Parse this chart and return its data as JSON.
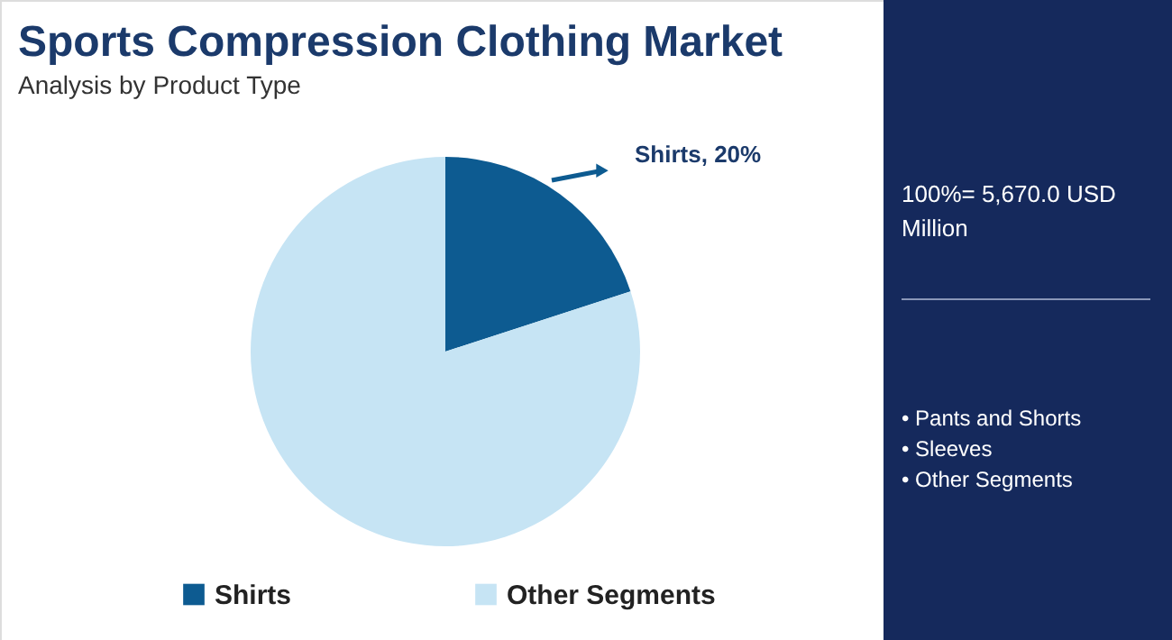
{
  "chart_data": {
    "type": "pie",
    "title": "Sports Compression Clothing Market",
    "subtitle": "Analysis by Product Type",
    "categories": [
      "Shirts",
      "Other Segments"
    ],
    "values": [
      20,
      80
    ],
    "colors": [
      "#0d5b91",
      "#c6e4f4"
    ],
    "value_labels": [
      "Shirts, 20%",
      null
    ],
    "legend": "bottom",
    "annotations": [
      "100%= 5,670.0 USD Million",
      "• Pants and Shorts",
      "• Sleeves",
      "• Other Segments"
    ]
  }
}
